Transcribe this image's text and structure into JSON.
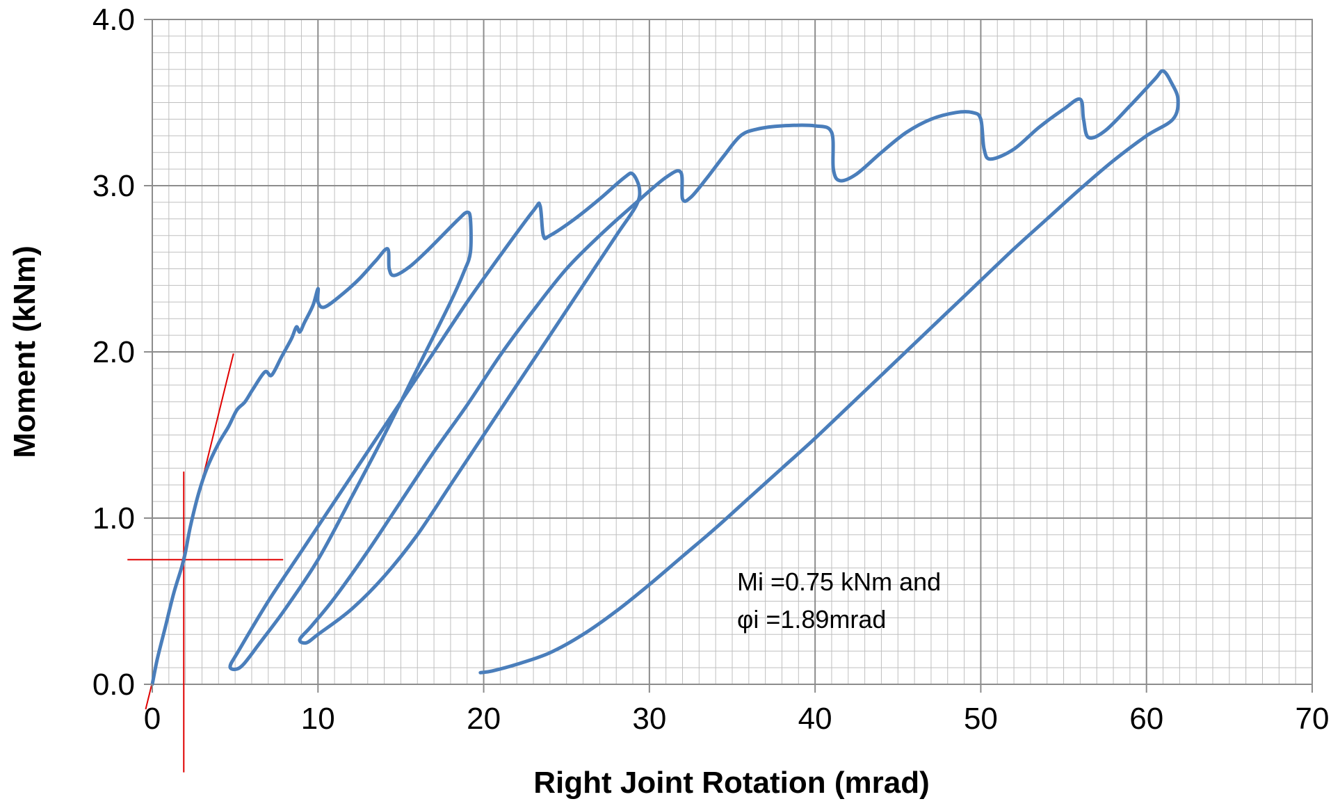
{
  "chart_data": {
    "type": "line",
    "title": "",
    "xlabel": "Right Joint Rotation (mrad)",
    "ylabel": "Moment (kNm)",
    "xlim": [
      0,
      70
    ],
    "ylim": [
      0.0,
      4.0
    ],
    "x_major_step": 10,
    "y_major_step": 1.0,
    "x_minor_step": 1,
    "y_minor_step": 0.1,
    "x_tick_labels": [
      "0",
      "10",
      "20",
      "30",
      "40",
      "50",
      "60",
      "70"
    ],
    "y_tick_labels": [
      "0.0",
      "1.0",
      "2.0",
      "3.0",
      "4.0"
    ],
    "grid": true,
    "legend": "none",
    "colors": {
      "series": "#4a7ebb",
      "construction": "#e00000",
      "grid_major": "#8c8c8c",
      "grid_minor": "#bfbfbf"
    },
    "annotations": [
      "Mi =0.75 kNm and",
      "φi =1.89mrad"
    ],
    "series": [
      {
        "values": [
          [
            0.0,
            0.0
          ],
          [
            0.3,
            0.15
          ],
          [
            0.8,
            0.35
          ],
          [
            1.3,
            0.55
          ],
          [
            1.9,
            0.75
          ],
          [
            2.3,
            0.95
          ],
          [
            2.8,
            1.15
          ],
          [
            3.3,
            1.3
          ],
          [
            4.0,
            1.45
          ],
          [
            4.6,
            1.55
          ],
          [
            5.1,
            1.65
          ],
          [
            5.6,
            1.7
          ],
          [
            6.1,
            1.78
          ],
          [
            6.8,
            1.88
          ],
          [
            7.2,
            1.86
          ],
          [
            7.8,
            1.97
          ],
          [
            8.4,
            2.08
          ],
          [
            8.7,
            2.15
          ],
          [
            8.9,
            2.12
          ],
          [
            9.2,
            2.18
          ],
          [
            9.7,
            2.28
          ],
          [
            10.0,
            2.38
          ],
          [
            10.0,
            2.3
          ],
          [
            10.4,
            2.27
          ],
          [
            11.5,
            2.35
          ],
          [
            12.5,
            2.44
          ],
          [
            13.5,
            2.55
          ],
          [
            14.2,
            2.62
          ],
          [
            14.3,
            2.5
          ],
          [
            14.6,
            2.46
          ],
          [
            15.5,
            2.51
          ],
          [
            16.5,
            2.6
          ],
          [
            17.5,
            2.7
          ],
          [
            18.5,
            2.8
          ],
          [
            19.0,
            2.84
          ],
          [
            19.2,
            2.8
          ],
          [
            19.2,
            2.6
          ],
          [
            18.8,
            2.48
          ],
          [
            18.0,
            2.3
          ],
          [
            16.0,
            1.9
          ],
          [
            14.0,
            1.5
          ],
          [
            12.0,
            1.12
          ],
          [
            10.0,
            0.75
          ],
          [
            8.0,
            0.45
          ],
          [
            6.5,
            0.25
          ],
          [
            5.5,
            0.12
          ],
          [
            5.0,
            0.09
          ],
          [
            4.7,
            0.11
          ],
          [
            5.2,
            0.2
          ],
          [
            7.0,
            0.5
          ],
          [
            9.0,
            0.8
          ],
          [
            11.0,
            1.1
          ],
          [
            13.0,
            1.4
          ],
          [
            15.0,
            1.7
          ],
          [
            17.0,
            2.0
          ],
          [
            19.0,
            2.3
          ],
          [
            21.0,
            2.58
          ],
          [
            23.0,
            2.85
          ],
          [
            23.4,
            2.88
          ],
          [
            23.6,
            2.7
          ],
          [
            24.0,
            2.7
          ],
          [
            25.5,
            2.8
          ],
          [
            27.0,
            2.92
          ],
          [
            28.5,
            3.05
          ],
          [
            29.0,
            3.07
          ],
          [
            29.4,
            2.98
          ],
          [
            29.2,
            2.88
          ],
          [
            28.0,
            2.7
          ],
          [
            26.0,
            2.4
          ],
          [
            24.0,
            2.1
          ],
          [
            22.0,
            1.8
          ],
          [
            20.0,
            1.5
          ],
          [
            18.0,
            1.2
          ],
          [
            16.0,
            0.9
          ],
          [
            14.0,
            0.65
          ],
          [
            12.0,
            0.45
          ],
          [
            10.0,
            0.3
          ],
          [
            9.3,
            0.25
          ],
          [
            8.9,
            0.27
          ],
          [
            9.6,
            0.35
          ],
          [
            11.0,
            0.52
          ],
          [
            13.0,
            0.8
          ],
          [
            15.0,
            1.1
          ],
          [
            17.0,
            1.4
          ],
          [
            19.0,
            1.68
          ],
          [
            21.0,
            1.98
          ],
          [
            23.0,
            2.25
          ],
          [
            25.0,
            2.5
          ],
          [
            27.0,
            2.7
          ],
          [
            29.0,
            2.88
          ],
          [
            31.0,
            3.05
          ],
          [
            31.9,
            3.08
          ],
          [
            32.0,
            2.92
          ],
          [
            32.5,
            2.93
          ],
          [
            33.5,
            3.05
          ],
          [
            34.5,
            3.18
          ],
          [
            35.5,
            3.3
          ],
          [
            36.5,
            3.34
          ],
          [
            38.0,
            3.36
          ],
          [
            40.0,
            3.36
          ],
          [
            41.0,
            3.32
          ],
          [
            41.1,
            3.1
          ],
          [
            41.5,
            3.03
          ],
          [
            42.5,
            3.07
          ],
          [
            44.0,
            3.2
          ],
          [
            45.5,
            3.32
          ],
          [
            47.0,
            3.4
          ],
          [
            48.5,
            3.44
          ],
          [
            49.5,
            3.44
          ],
          [
            50.0,
            3.4
          ],
          [
            50.2,
            3.22
          ],
          [
            50.6,
            3.16
          ],
          [
            52.0,
            3.22
          ],
          [
            53.5,
            3.35
          ],
          [
            55.0,
            3.46
          ],
          [
            56.0,
            3.52
          ],
          [
            56.2,
            3.4
          ],
          [
            56.5,
            3.29
          ],
          [
            57.5,
            3.33
          ],
          [
            59.0,
            3.48
          ],
          [
            60.5,
            3.64
          ],
          [
            61.0,
            3.69
          ],
          [
            61.5,
            3.62
          ],
          [
            61.9,
            3.52
          ],
          [
            61.6,
            3.4
          ],
          [
            60.0,
            3.3
          ],
          [
            58.0,
            3.15
          ],
          [
            56.0,
            2.98
          ],
          [
            54.0,
            2.8
          ],
          [
            52.0,
            2.62
          ],
          [
            50.0,
            2.43
          ],
          [
            48.0,
            2.24
          ],
          [
            46.0,
            2.05
          ],
          [
            44.0,
            1.86
          ],
          [
            42.0,
            1.67
          ],
          [
            40.0,
            1.48
          ],
          [
            38.0,
            1.3
          ],
          [
            36.0,
            1.12
          ],
          [
            34.0,
            0.94
          ],
          [
            32.0,
            0.77
          ],
          [
            30.0,
            0.6
          ],
          [
            28.0,
            0.44
          ],
          [
            26.0,
            0.3
          ],
          [
            24.0,
            0.19
          ],
          [
            22.0,
            0.12
          ],
          [
            20.5,
            0.08
          ],
          [
            19.8,
            0.07
          ]
        ]
      }
    ],
    "construction_lines": [
      {
        "from": [
          -0.4,
          -0.15
        ],
        "to": [
          4.9,
          1.99
        ]
      },
      {
        "from": [
          -1.5,
          0.75
        ],
        "to": [
          7.9,
          0.75
        ]
      },
      {
        "from": [
          1.9,
          1.28
        ],
        "to": [
          1.9,
          -0.53
        ]
      }
    ]
  }
}
